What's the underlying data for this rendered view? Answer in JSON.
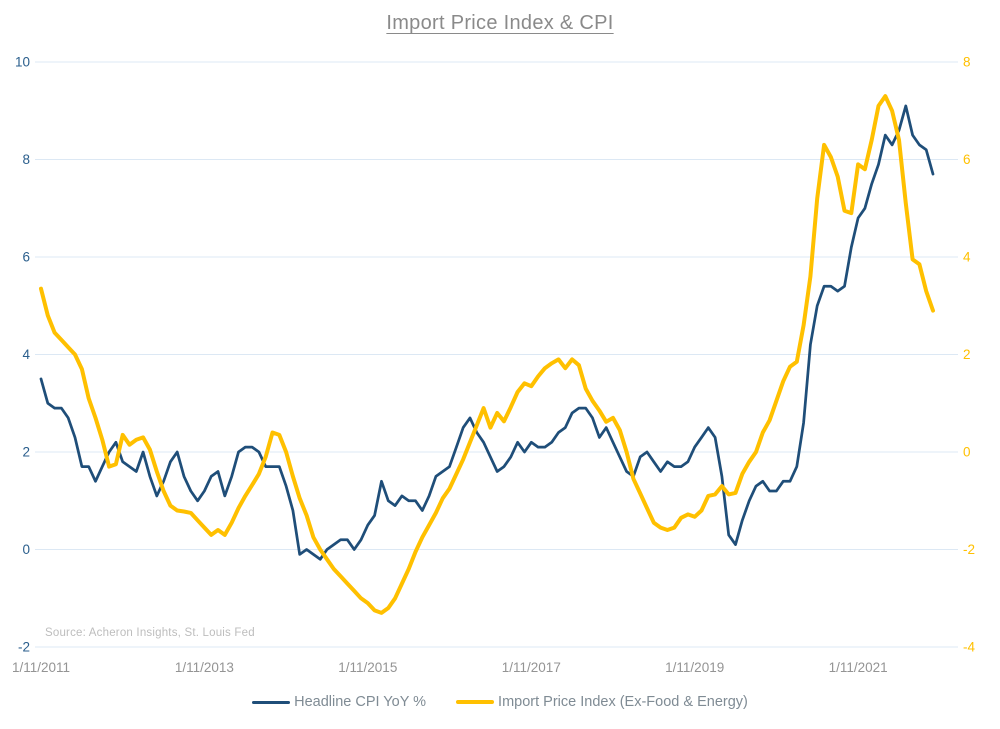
{
  "title": "Import Price Index & CPI",
  "source_note": "Source: Acheron Insights, St. Louis Fed",
  "colors": {
    "cpi_line": "#1F4E79",
    "import_line": "#FFC000",
    "gridline": "#DCE8F4",
    "left_axis_text": "#2A5E8C",
    "right_axis_text": "#FFC000",
    "x_axis_text": "#949494",
    "title_text": "#8A8A8A",
    "source_text": "#BDBDBD",
    "legend_text": "#7F8B94"
  },
  "legend": {
    "items": [
      {
        "label": "Headline CPI YoY %",
        "color": "#1F4E79"
      },
      {
        "label": "Import Price Index (Ex-Food & Energy)",
        "color": "#FFC000"
      }
    ]
  },
  "chart_data": {
    "type": "line",
    "title": "Import Price Index & CPI",
    "x_frequency": "monthly",
    "x_start": "11/2011",
    "x_end": "10/2022",
    "x_tick_labels": [
      "1/11/2011",
      "1/11/2013",
      "1/11/2015",
      "1/11/2017",
      "1/11/2019",
      "1/11/2021"
    ],
    "x_tick_interval_months": 24,
    "grid": true,
    "legend_position": "bottom",
    "left_axis": {
      "min": -2,
      "max": 10,
      "ticks": [
        10,
        8,
        6,
        4,
        2,
        0,
        -2
      ]
    },
    "right_axis": {
      "min": -4,
      "max": 8,
      "ticks": [
        8,
        6,
        4,
        2,
        0,
        -2,
        -4
      ]
    },
    "series": [
      {
        "name": "Headline CPI YoY %",
        "axis": "left",
        "color": "#1F4E79",
        "values": [
          3.5,
          3.0,
          2.9,
          2.9,
          2.7,
          2.3,
          1.7,
          1.7,
          1.4,
          1.7,
          2.0,
          2.2,
          1.8,
          1.7,
          1.6,
          2.0,
          1.5,
          1.1,
          1.4,
          1.8,
          2.0,
          1.5,
          1.2,
          1.0,
          1.2,
          1.5,
          1.6,
          1.1,
          1.5,
          2.0,
          2.1,
          2.1,
          2.0,
          1.7,
          1.7,
          1.7,
          1.3,
          0.8,
          -0.1,
          0.0,
          -0.1,
          -0.2,
          0.0,
          0.1,
          0.2,
          0.2,
          0.0,
          0.2,
          0.5,
          0.7,
          1.4,
          1.0,
          0.9,
          1.1,
          1.0,
          1.0,
          0.8,
          1.1,
          1.5,
          1.6,
          1.7,
          2.1,
          2.5,
          2.7,
          2.4,
          2.2,
          1.9,
          1.6,
          1.7,
          1.9,
          2.2,
          2.0,
          2.2,
          2.1,
          2.1,
          2.2,
          2.4,
          2.5,
          2.8,
          2.9,
          2.9,
          2.7,
          2.3,
          2.5,
          2.2,
          1.9,
          1.6,
          1.5,
          1.9,
          2.0,
          1.8,
          1.6,
          1.8,
          1.7,
          1.7,
          1.8,
          2.1,
          2.3,
          2.5,
          2.3,
          1.5,
          0.3,
          0.1,
          0.6,
          1.0,
          1.3,
          1.4,
          1.2,
          1.2,
          1.4,
          1.4,
          1.7,
          2.6,
          4.2,
          5.0,
          5.4,
          5.4,
          5.3,
          5.4,
          6.2,
          6.8,
          7.0,
          7.5,
          7.9,
          8.5,
          8.3,
          8.6,
          9.1,
          8.5,
          8.3,
          8.2,
          7.7
        ]
      },
      {
        "name": "Import Price Index (Ex-Food & Energy)",
        "axis": "right",
        "color": "#FFC000",
        "values": [
          3.35,
          2.8,
          2.45,
          2.3,
          2.15,
          2.0,
          1.7,
          1.1,
          0.7,
          0.25,
          -0.3,
          -0.25,
          0.35,
          0.15,
          0.25,
          0.3,
          0.05,
          -0.4,
          -0.8,
          -1.1,
          -1.2,
          -1.22,
          -1.25,
          -1.4,
          -1.55,
          -1.7,
          -1.6,
          -1.7,
          -1.45,
          -1.15,
          -0.9,
          -0.68,
          -0.45,
          -0.1,
          0.4,
          0.35,
          0.0,
          -0.5,
          -0.95,
          -1.3,
          -1.75,
          -2.0,
          -2.2,
          -2.4,
          -2.55,
          -2.7,
          -2.85,
          -3.0,
          -3.1,
          -3.25,
          -3.3,
          -3.2,
          -3.0,
          -2.7,
          -2.4,
          -2.05,
          -1.75,
          -1.5,
          -1.25,
          -0.95,
          -0.75,
          -0.45,
          -0.15,
          0.2,
          0.55,
          0.9,
          0.5,
          0.8,
          0.63,
          0.92,
          1.23,
          1.41,
          1.35,
          1.55,
          1.72,
          1.82,
          1.9,
          1.72,
          1.9,
          1.78,
          1.3,
          1.05,
          0.85,
          0.62,
          0.7,
          0.45,
          0.0,
          -0.55,
          -0.85,
          -1.15,
          -1.45,
          -1.55,
          -1.6,
          -1.55,
          -1.35,
          -1.28,
          -1.33,
          -1.2,
          -0.9,
          -0.87,
          -0.7,
          -0.87,
          -0.84,
          -0.45,
          -0.2,
          0.0,
          0.4,
          0.65,
          1.05,
          1.45,
          1.75,
          1.85,
          2.6,
          3.6,
          5.2,
          6.3,
          6.05,
          5.65,
          4.95,
          4.9,
          5.9,
          5.8,
          6.4,
          7.1,
          7.3,
          7.0,
          6.4,
          5.1,
          3.95,
          3.85,
          3.3,
          2.9
        ]
      }
    ]
  }
}
